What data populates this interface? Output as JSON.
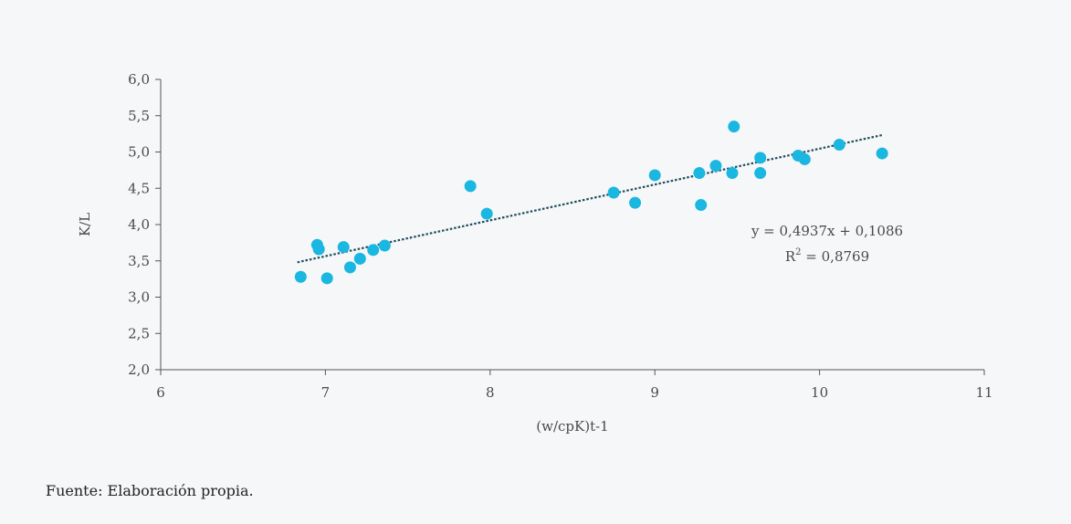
{
  "chart_data": {
    "type": "scatter",
    "title": "",
    "xlabel": "(w/cpK)t-1",
    "ylabel": "K/L",
    "xlim": [
      6,
      11
    ],
    "ylim": [
      2.0,
      6.0
    ],
    "x_ticks": [
      6,
      7,
      8,
      9,
      10,
      11
    ],
    "x_tick_labels": [
      "6",
      "7",
      "8",
      "9",
      "10",
      "11"
    ],
    "y_ticks": [
      2.0,
      2.5,
      3.0,
      3.5,
      4.0,
      4.5,
      5.0,
      5.5,
      6.0
    ],
    "y_tick_labels": [
      "2,0",
      "2,5",
      "3,0",
      "3,5",
      "4,0",
      "4,5",
      "5,0",
      "5,5",
      "6,0"
    ],
    "grid": false,
    "point_color": "#1ab7e0",
    "trendline_color": "#1f4e5f",
    "series": [
      {
        "points": [
          {
            "x": 6.85,
            "y": 3.28
          },
          {
            "x": 6.95,
            "y": 3.72
          },
          {
            "x": 6.96,
            "y": 3.66
          },
          {
            "x": 7.01,
            "y": 3.26
          },
          {
            "x": 7.11,
            "y": 3.69
          },
          {
            "x": 7.15,
            "y": 3.41
          },
          {
            "x": 7.21,
            "y": 3.53
          },
          {
            "x": 7.29,
            "y": 3.65
          },
          {
            "x": 7.36,
            "y": 3.71
          },
          {
            "x": 7.88,
            "y": 4.53
          },
          {
            "x": 7.98,
            "y": 4.15
          },
          {
            "x": 8.75,
            "y": 4.44
          },
          {
            "x": 8.88,
            "y": 4.3
          },
          {
            "x": 9.0,
            "y": 4.68
          },
          {
            "x": 9.27,
            "y": 4.71
          },
          {
            "x": 9.28,
            "y": 4.27
          },
          {
            "x": 9.37,
            "y": 4.81
          },
          {
            "x": 9.47,
            "y": 4.71
          },
          {
            "x": 9.48,
            "y": 5.35
          },
          {
            "x": 9.64,
            "y": 4.92
          },
          {
            "x": 9.64,
            "y": 4.71
          },
          {
            "x": 9.87,
            "y": 4.95
          },
          {
            "x": 9.91,
            "y": 4.9
          },
          {
            "x": 10.12,
            "y": 5.1
          },
          {
            "x": 10.38,
            "y": 4.98
          }
        ]
      }
    ],
    "trendline": {
      "slope": 0.4937,
      "intercept": 0.1086,
      "x_range": [
        6.83,
        10.38
      ],
      "equation_label": "y = 0,4937x + 0,1086",
      "r2_label_prefix": "R",
      "r2_label_sup": "2",
      "r2_label_value": " = 0,8769"
    }
  },
  "source": "Fuente: Elaboración propia."
}
